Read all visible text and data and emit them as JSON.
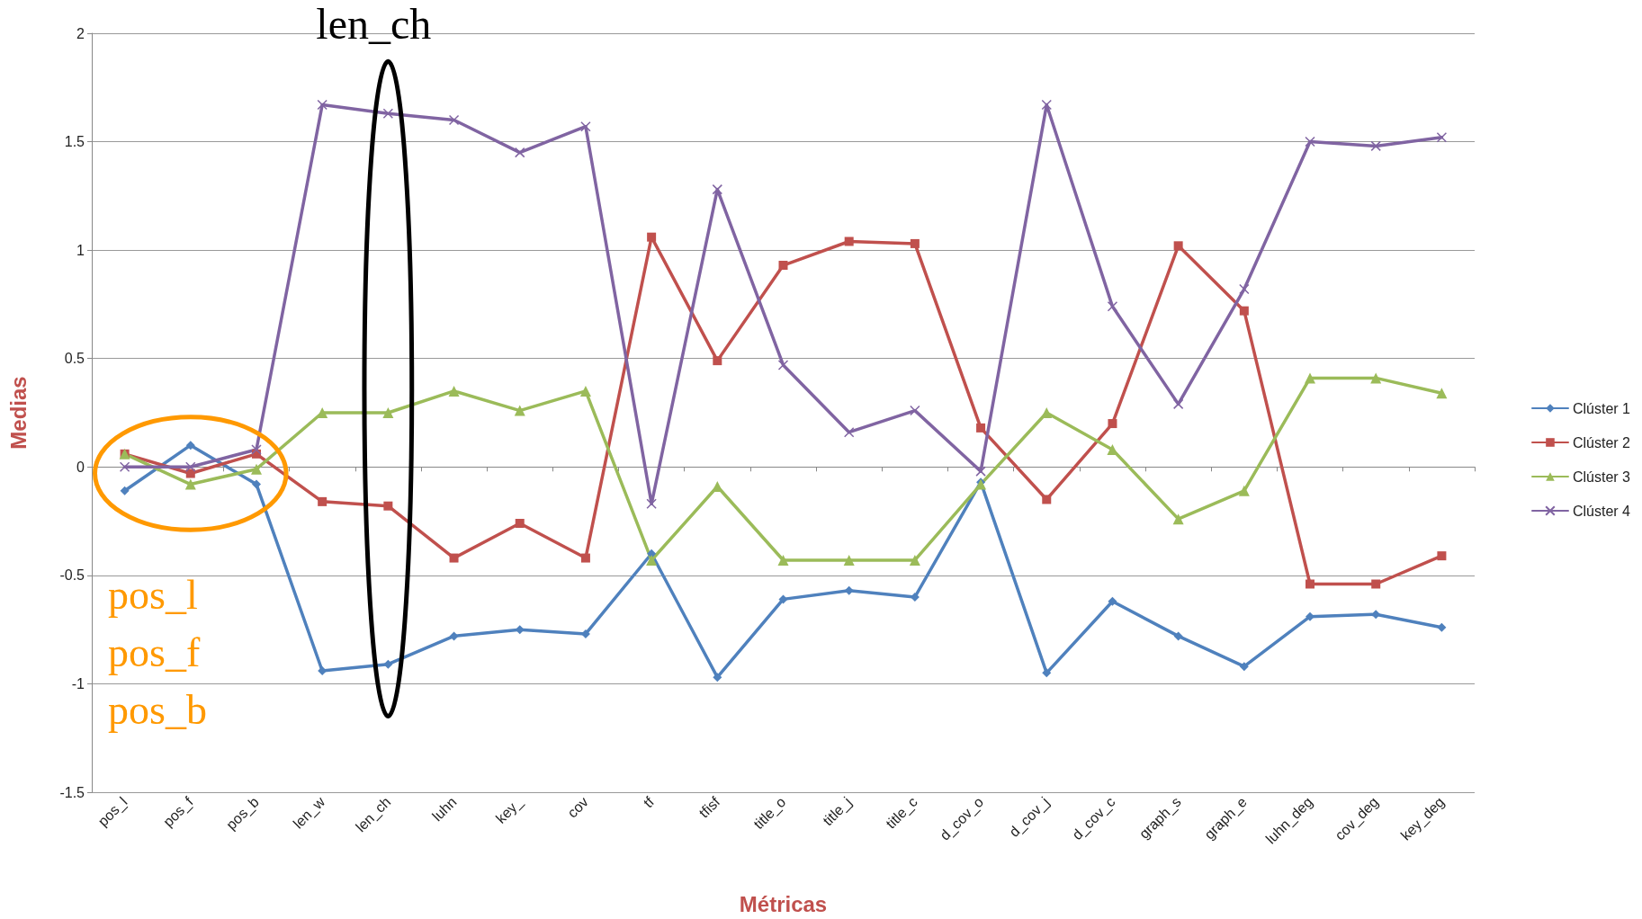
{
  "chart_data": {
    "type": "line",
    "xlabel": "Métricas",
    "ylabel": "Medias",
    "categories": [
      "pos_l",
      "pos_f",
      "pos_b",
      "len_w",
      "len_ch",
      "luhn",
      "key_",
      "cov",
      "tf",
      "tfisf",
      "title_o",
      "title_j",
      "title_c",
      "d_cov_o",
      "d_cov_j",
      "d_cov_c",
      "graph_s",
      "graph_e",
      "luhn_deg",
      "cov_deg",
      "key_deg"
    ],
    "series": [
      {
        "name": "Clúster 1",
        "color": "#4f81bd",
        "marker": "diamond",
        "values": [
          -0.11,
          0.1,
          -0.08,
          -0.94,
          -0.91,
          -0.78,
          -0.75,
          -0.77,
          -0.4,
          -0.97,
          -0.61,
          -0.57,
          -0.6,
          -0.07,
          -0.95,
          -0.62,
          -0.78,
          -0.92,
          -0.69,
          -0.68,
          -0.74
        ]
      },
      {
        "name": "Clúster 2",
        "color": "#c0504d",
        "marker": "square",
        "values": [
          0.06,
          -0.03,
          0.06,
          -0.16,
          -0.18,
          -0.42,
          -0.26,
          -0.42,
          1.06,
          0.49,
          0.93,
          1.04,
          1.03,
          0.18,
          -0.15,
          0.2,
          1.02,
          0.72,
          -0.54,
          -0.54,
          -0.41
        ]
      },
      {
        "name": "Clúster 3",
        "color": "#9bbb59",
        "marker": "triangle",
        "values": [
          0.06,
          -0.08,
          -0.01,
          0.25,
          0.25,
          0.35,
          0.26,
          0.35,
          -0.43,
          -0.09,
          -0.43,
          -0.43,
          -0.43,
          -0.08,
          0.25,
          0.08,
          -0.24,
          -0.11,
          0.41,
          0.41,
          0.34
        ]
      },
      {
        "name": "Clúster 4",
        "color": "#8064a2",
        "marker": "cross",
        "values": [
          0.0,
          0.0,
          0.08,
          1.67,
          1.63,
          1.6,
          1.45,
          1.57,
          -0.17,
          1.28,
          0.47,
          0.16,
          0.26,
          -0.02,
          1.67,
          0.74,
          0.29,
          0.82,
          1.5,
          1.48,
          1.52
        ]
      }
    ],
    "ylim": [
      -1.5,
      2
    ],
    "yticks": [
      -1.5,
      -1,
      -0.5,
      0,
      0.5,
      1,
      1.5,
      2
    ],
    "grid": "y",
    "legend": "right",
    "line_style": "solid",
    "annotations": [
      "len_ch",
      "pos_l\npos_f\npos_b"
    ]
  }
}
